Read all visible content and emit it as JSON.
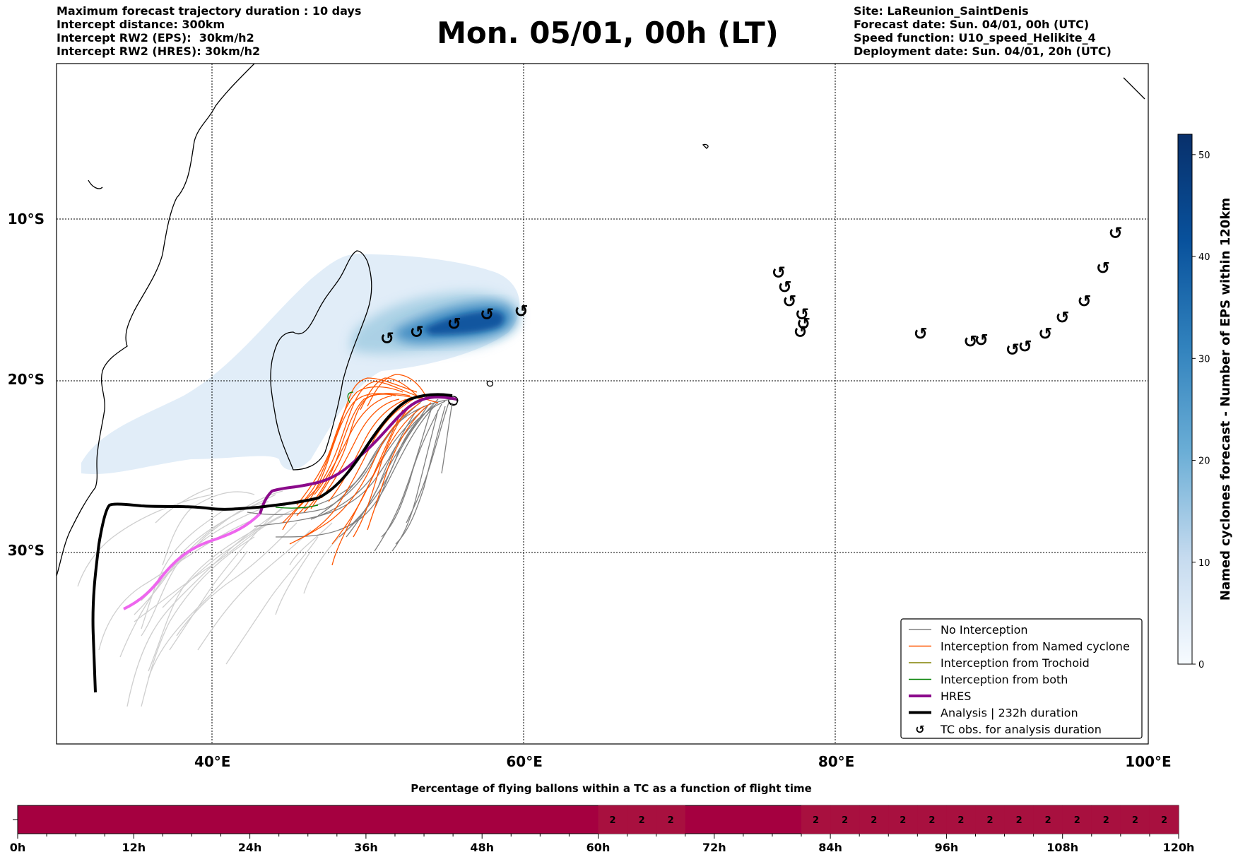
{
  "header": {
    "left": [
      "Maximum forecast trajectory duration : 10 days",
      "Intercept distance: 300km",
      "Intercept RW2 (EPS):  30km/h2",
      "Intercept RW2 (HRES): 30km/h2"
    ],
    "title": "Mon. 05/01, 00h (LT)",
    "right": [
      "Site: LaReunion_SaintDenis",
      "Forecast date: Sun. 04/01, 00h (UTC)",
      "Speed function: U10_speed_Helikite_4",
      "Deployment date: Sun. 04/01, 20h (UTC)"
    ]
  },
  "map": {
    "lon_labels": [
      {
        "lon": 40,
        "text": "40°E"
      },
      {
        "lon": 60,
        "text": "60°E"
      },
      {
        "lon": 80,
        "text": "80°E"
      },
      {
        "lon": 100,
        "text": "100°E"
      }
    ],
    "lat_labels": [
      {
        "lat": -10,
        "text": "10°S"
      },
      {
        "lat": -20,
        "text": "20°S"
      },
      {
        "lat": -30,
        "text": "30°S"
      }
    ],
    "extent": {
      "lon_min": 30,
      "lon_max": 100,
      "lat_max": 0,
      "lat_min": -42
    },
    "tc_symbol": "↺",
    "tc_positions": [
      [
        51.2,
        -17.5
      ],
      [
        53.1,
        -17.1
      ],
      [
        55.5,
        -16.6
      ],
      [
        57.6,
        -16.0
      ],
      [
        59.8,
        -15.8
      ],
      [
        76.3,
        -13.4
      ],
      [
        76.7,
        -14.3
      ],
      [
        77.0,
        -15.2
      ],
      [
        77.8,
        -16.0
      ],
      [
        77.9,
        -16.6
      ],
      [
        77.7,
        -17.1
      ],
      [
        85.4,
        -17.2
      ],
      [
        88.6,
        -17.7
      ],
      [
        89.3,
        -17.6
      ],
      [
        91.3,
        -18.2
      ],
      [
        92.1,
        -18.0
      ],
      [
        93.4,
        -17.2
      ],
      [
        94.5,
        -16.2
      ],
      [
        95.9,
        -15.2
      ],
      [
        97.1,
        -13.1
      ],
      [
        97.9,
        -10.9
      ]
    ],
    "colors": {
      "no_interception": "#808080",
      "named_cyclone": "#ff5500",
      "trochoid": "#808000",
      "both": "#008000",
      "hres": "#8b0a8b",
      "analysis": "#000000",
      "light_traj": "#cfcfcf",
      "pink_traj": "#ee66ee",
      "density": "#08306b"
    }
  },
  "colorbar": {
    "title": "Named cyclones forecast - Number of EPS within 120km",
    "min": 0,
    "max": 52,
    "ticks": [
      "0",
      "10",
      "20",
      "30",
      "40",
      "50"
    ],
    "tick_values": [
      0,
      10,
      20,
      30,
      40,
      50
    ]
  },
  "legend": {
    "items": [
      {
        "label": "No Interception",
        "color": "#808080",
        "kind": "line",
        "width": 1.5
      },
      {
        "label": "Interception from Named cyclone",
        "color": "#ff5500",
        "kind": "line",
        "width": 1.5
      },
      {
        "label": "Interception from Trochoid",
        "color": "#808000",
        "kind": "line",
        "width": 1.5
      },
      {
        "label": "Interception from both",
        "color": "#008000",
        "kind": "line",
        "width": 1.5
      },
      {
        "label": "HRES",
        "color": "#8b0a8b",
        "kind": "line",
        "width": 4
      },
      {
        "label": "Analysis | 232h duration",
        "color": "#000000",
        "kind": "line",
        "width": 4
      },
      {
        "label": "TC obs. for analysis duration",
        "color": "#000000",
        "kind": "symbol",
        "symbol": "↺"
      }
    ]
  },
  "timeline": {
    "title": "Percentage of flying ballons within a TC as a function of flight time",
    "tick_labels": [
      "0h",
      "12h",
      "24h",
      "36h",
      "48h",
      "60h",
      "72h",
      "84h",
      "96h",
      "108h",
      "120h"
    ],
    "max_hours": 120,
    "bar_color": "#a50040",
    "cell_color": "#a8103f",
    "cells": [
      {
        "hour": 61.5,
        "value": "2"
      },
      {
        "hour": 64.5,
        "value": "2"
      },
      {
        "hour": 67.5,
        "value": "2"
      },
      {
        "hour": 82.5,
        "value": "2"
      },
      {
        "hour": 85.5,
        "value": "2"
      },
      {
        "hour": 88.5,
        "value": "2"
      },
      {
        "hour": 91.5,
        "value": "2"
      },
      {
        "hour": 94.5,
        "value": "2"
      },
      {
        "hour": 97.5,
        "value": "2"
      },
      {
        "hour": 100.5,
        "value": "2"
      },
      {
        "hour": 103.5,
        "value": "2"
      },
      {
        "hour": 106.5,
        "value": "2"
      },
      {
        "hour": 109.5,
        "value": "2"
      },
      {
        "hour": 112.5,
        "value": "2"
      },
      {
        "hour": 115.5,
        "value": "2"
      },
      {
        "hour": 118.5,
        "value": "2"
      }
    ]
  }
}
